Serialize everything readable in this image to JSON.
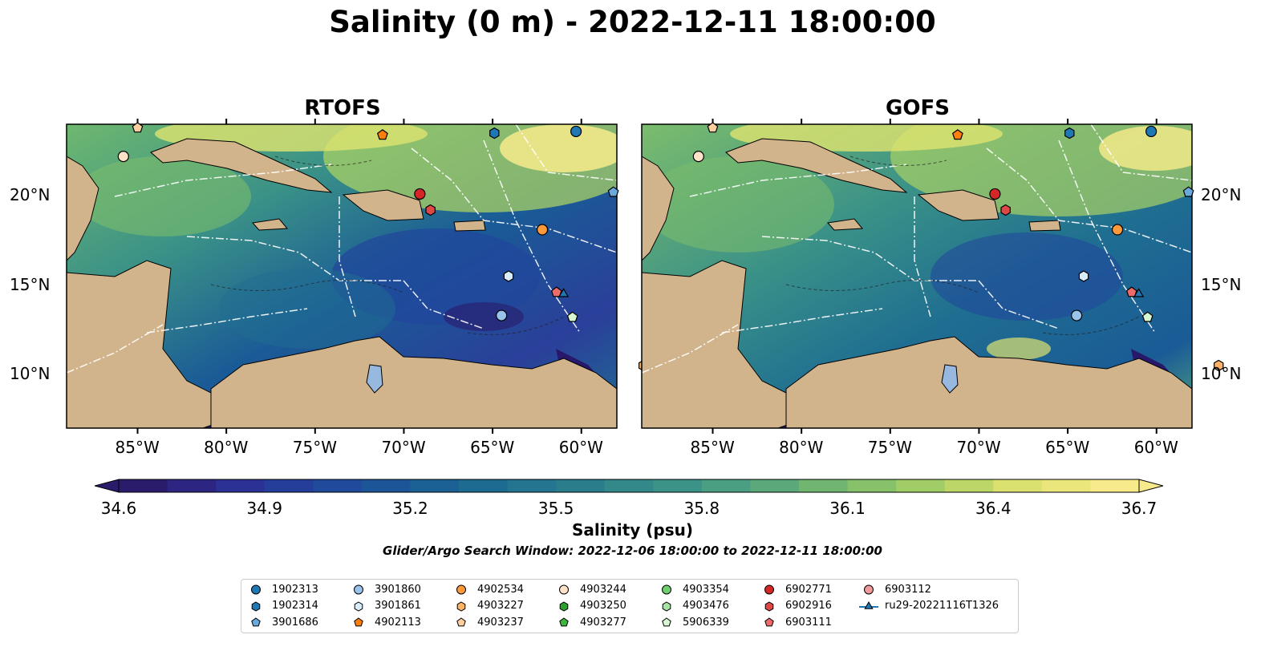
{
  "title": "Salinity (0 m) - 2022-12-11 18:00:00",
  "panels": [
    {
      "title": "RTOFS"
    },
    {
      "title": "GOFS"
    }
  ],
  "map_extent": {
    "lon": [
      -89,
      -58
    ],
    "lat": [
      7,
      24
    ]
  },
  "lon_ticks": [
    "85°W",
    "80°W",
    "75°W",
    "70°W",
    "65°W",
    "60°W"
  ],
  "lat_ticks": [
    "20°N",
    "15°N",
    "10°N"
  ],
  "colorbar": {
    "label": "Salinity (psu)",
    "ticks": [
      "34.6",
      "34.9",
      "35.2",
      "35.5",
      "35.8",
      "36.1",
      "36.4",
      "36.7"
    ],
    "range": [
      34.6,
      36.7
    ],
    "colormap": "haline",
    "colors": [
      "#2a1b6b",
      "#2d2f94",
      "#21469c",
      "#1a5b96",
      "#1f6e91",
      "#2b7f8c",
      "#3a9187",
      "#55a67d",
      "#7cbd6c",
      "#a9d164",
      "#dfe36f",
      "#f7ea8b"
    ]
  },
  "search_window": "Glider/Argo Search Window: 2022-12-06 18:00:00 to 2022-12-11 18:00:00",
  "colors": {
    "land": "#d2b48c",
    "deep_ocean": "#27186b",
    "lakes": "#97b9e0"
  },
  "platforms": [
    {
      "id": "1902313",
      "marker": "circle",
      "color": "#1f77b4",
      "lon": -60.3,
      "lat": 23.6
    },
    {
      "id": "1902314",
      "marker": "hexagon",
      "color": "#1f77b4",
      "lon": -64.9,
      "lat": 23.5
    },
    {
      "id": "3901686",
      "marker": "pentagon",
      "color": "#6aa9dc",
      "lon": -58.2,
      "lat": 20.2
    },
    {
      "id": "3901860",
      "marker": "circle",
      "color": "#98c3ea",
      "lon": -64.5,
      "lat": 13.3
    },
    {
      "id": "3901861",
      "marker": "hexagon",
      "color": "#d8ecfb",
      "lon": -64.1,
      "lat": 15.5
    },
    {
      "id": "4902113",
      "marker": "pentagon",
      "color": "#ff7f0e",
      "lon": -71.2,
      "lat": 23.4
    },
    {
      "id": "4902534",
      "marker": "circle",
      "color": "#ff9a3c",
      "lon": -62.2,
      "lat": 18.1
    },
    {
      "id": "4903227",
      "marker": "hexagon",
      "color": "#ffb366",
      "lon": -56.5,
      "lat": 10.5
    },
    {
      "id": "4903237",
      "marker": "pentagon",
      "color": "#ffcfa0",
      "lon": -85.0,
      "lat": 23.8
    },
    {
      "id": "4903244",
      "marker": "circle",
      "color": "#ffe3c8",
      "lon": -85.8,
      "lat": 22.2
    },
    {
      "id": "4903250",
      "marker": "hexagon",
      "color": "#2ca02c",
      "lon": null,
      "lat": null
    },
    {
      "id": "4903277",
      "marker": "pentagon",
      "color": "#3fb63f",
      "lon": null,
      "lat": null
    },
    {
      "id": "4903354",
      "marker": "circle",
      "color": "#6fcf6f",
      "lon": null,
      "lat": null
    },
    {
      "id": "4903476",
      "marker": "hexagon",
      "color": "#a7e3a7",
      "lon": null,
      "lat": null
    },
    {
      "id": "5906339",
      "marker": "pentagon",
      "color": "#d6f7d0",
      "lon": -60.5,
      "lat": 13.2
    },
    {
      "id": "6902771",
      "marker": "circle",
      "color": "#d62728",
      "lon": -69.1,
      "lat": 20.1
    },
    {
      "id": "6902916",
      "marker": "hexagon",
      "color": "#e04848",
      "lon": -68.5,
      "lat": 19.2
    },
    {
      "id": "6903111",
      "marker": "pentagon",
      "color": "#ee6b6b",
      "lon": -61.4,
      "lat": 14.6
    },
    {
      "id": "6903112",
      "marker": "circle",
      "color": "#f19a9a",
      "lon": null,
      "lat": null
    },
    {
      "id": "ru29-20221116T1326",
      "marker": "triangle",
      "color": "#1f77b4",
      "lon": -61.0,
      "lat": 14.5
    }
  ]
}
